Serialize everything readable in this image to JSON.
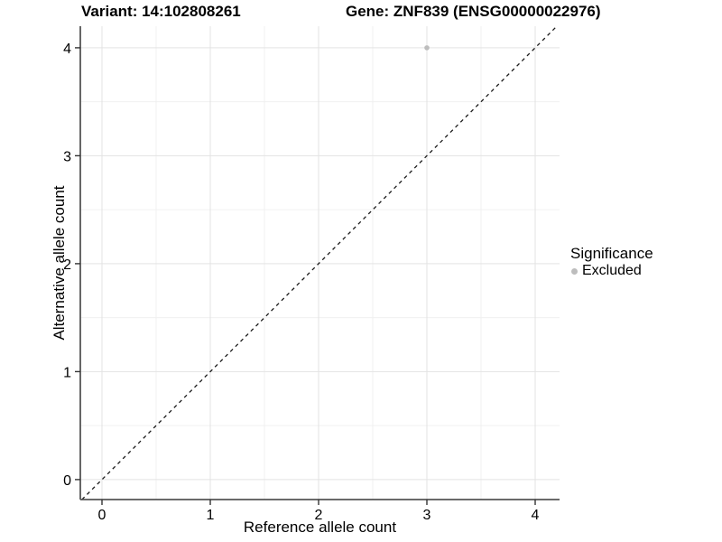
{
  "figure": {
    "background": "#ffffff"
  },
  "chart_data": {
    "type": "scatter",
    "titles": {
      "left": "Variant: 14:102808261",
      "right": "Gene: ZNF839 (ENSG00000022976)"
    },
    "xlabel": "Reference allele count",
    "ylabel": "Alternative allele count",
    "x_ticks": [
      0,
      1,
      2,
      3,
      4
    ],
    "y_ticks": [
      0,
      1,
      2,
      3,
      4
    ],
    "x_minor_ticks": [
      0.5,
      1.5,
      2.5,
      3.5
    ],
    "y_minor_ticks": [
      0.5,
      1.5,
      2.5,
      3.5
    ],
    "xlim": [
      -0.2,
      4.225
    ],
    "ylim": [
      -0.185,
      4.2
    ],
    "grid": {
      "show": true,
      "major_color": "#e3e3e3",
      "minor_color": "#f0f0f0"
    },
    "axis_color": "#555555",
    "tick_color": "#333333",
    "text_color": "#000000",
    "reference_line": {
      "type": "identity",
      "slope": 1,
      "intercept": 0,
      "style": "dashed",
      "color": "#1a1a1a"
    },
    "series": [
      {
        "name": "Excluded",
        "color": "#bdbdbd",
        "points": [
          {
            "x": 3,
            "y": 4
          }
        ]
      }
    ],
    "legend": {
      "title": "Significance",
      "position": "right-center",
      "entries": [
        {
          "label": "Excluded",
          "color": "#bdbdbd"
        }
      ]
    }
  }
}
